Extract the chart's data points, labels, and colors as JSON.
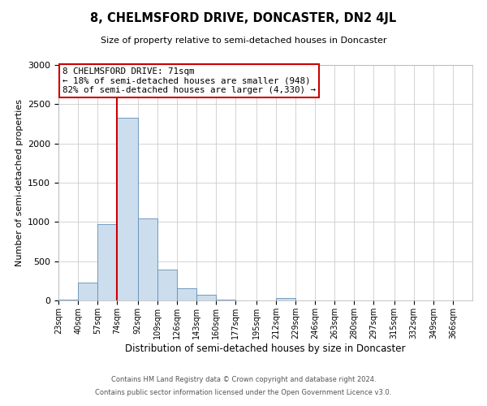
{
  "title": "8, CHELMSFORD DRIVE, DONCASTER, DN2 4JL",
  "subtitle": "Size of property relative to semi-detached houses in Doncaster",
  "xlabel": "Distribution of semi-detached houses by size in Doncaster",
  "ylabel": "Number of semi-detached properties",
  "bar_labels": [
    "23sqm",
    "40sqm",
    "57sqm",
    "74sqm",
    "92sqm",
    "109sqm",
    "126sqm",
    "143sqm",
    "160sqm",
    "177sqm",
    "195sqm",
    "212sqm",
    "229sqm",
    "246sqm",
    "263sqm",
    "280sqm",
    "297sqm",
    "315sqm",
    "332sqm",
    "349sqm",
    "366sqm"
  ],
  "bar_values": [
    15,
    230,
    970,
    2330,
    1040,
    390,
    160,
    75,
    15,
    0,
    0,
    30,
    0,
    0,
    0,
    0,
    0,
    0,
    0,
    0,
    0
  ],
  "bar_color": "#ccdded",
  "bar_edge_color": "#6090b8",
  "bin_edges": [
    23,
    40,
    57,
    74,
    92,
    109,
    126,
    143,
    160,
    177,
    195,
    212,
    229,
    246,
    263,
    280,
    297,
    315,
    332,
    349,
    366,
    383
  ],
  "vline_x": 74,
  "vline_color": "#cc0000",
  "ylim": [
    0,
    3000
  ],
  "yticks": [
    0,
    500,
    1000,
    1500,
    2000,
    2500,
    3000
  ],
  "annotation_title": "8 CHELMSFORD DRIVE: 71sqm",
  "annotation_line1": "← 18% of semi-detached houses are smaller (948)",
  "annotation_line2": "82% of semi-detached houses are larger (4,330) →",
  "annotation_box_color": "#ffffff",
  "annotation_box_edge": "#cc0000",
  "footer1": "Contains HM Land Registry data © Crown copyright and database right 2024.",
  "footer2": "Contains public sector information licensed under the Open Government Licence v3.0.",
  "background_color": "#ffffff",
  "grid_color": "#cccccc",
  "title_fontsize": 10.5,
  "subtitle_fontsize": 8,
  "ylabel_fontsize": 8,
  "xlabel_fontsize": 8.5,
  "ytick_fontsize": 8,
  "xtick_fontsize": 7,
  "footer_fontsize": 6,
  "annot_fontsize": 7.8
}
